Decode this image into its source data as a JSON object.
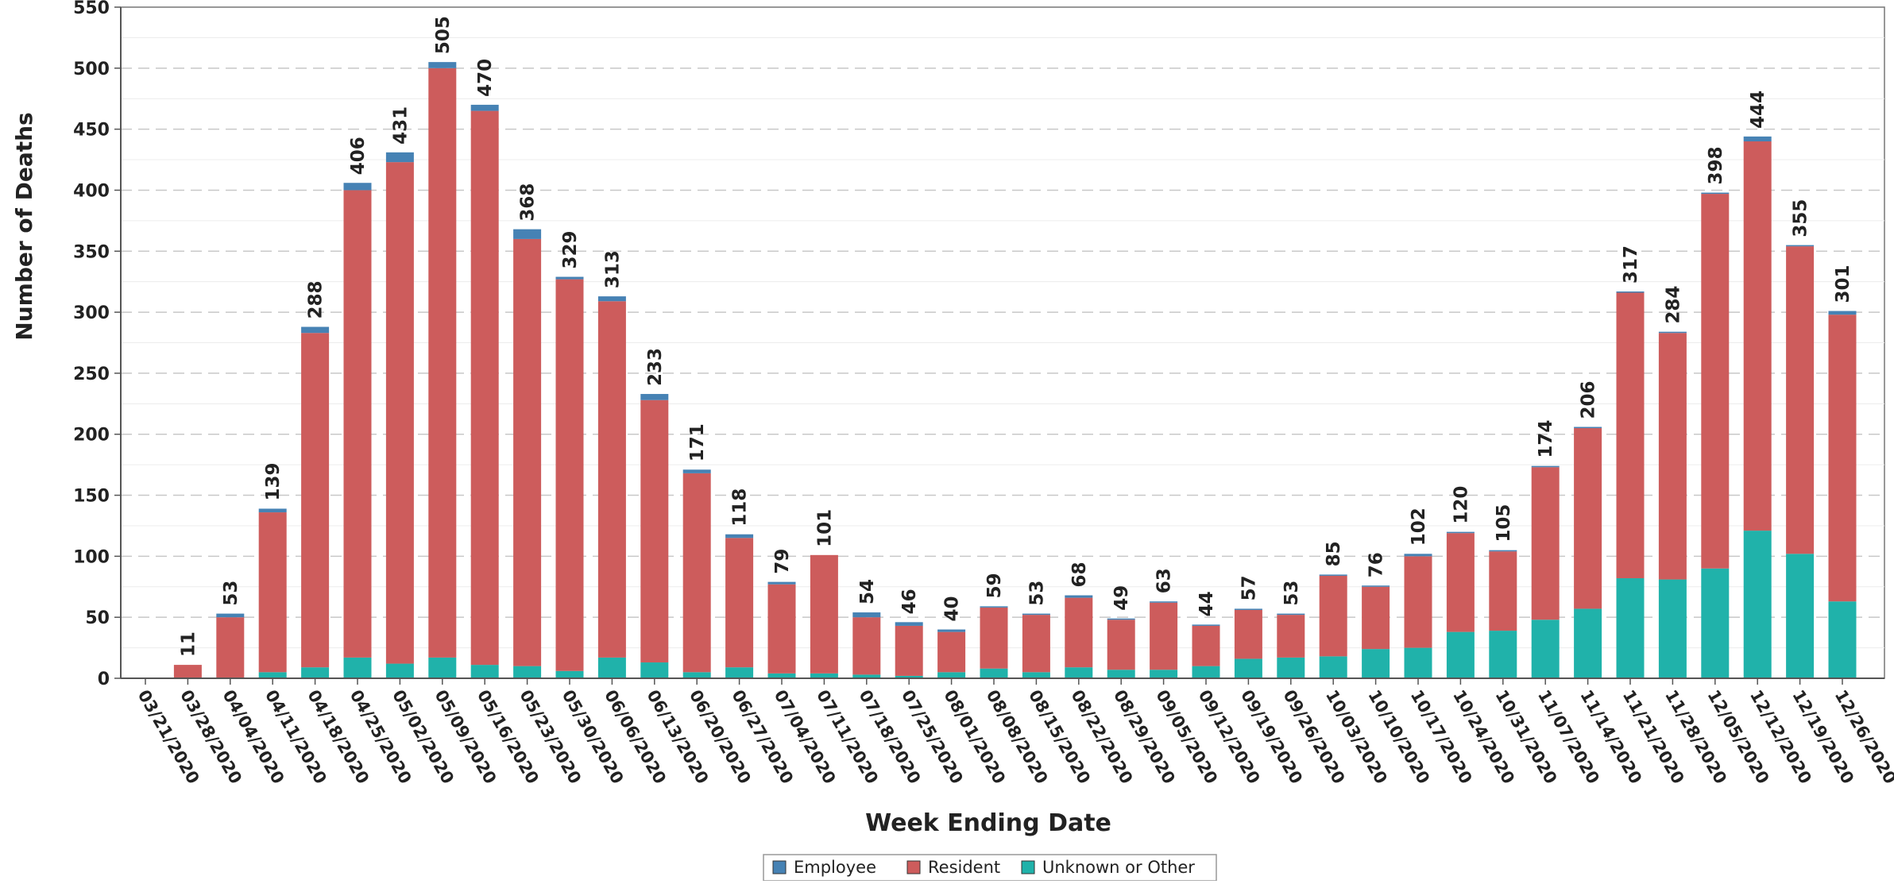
{
  "chart_data": {
    "type": "bar",
    "stacked": true,
    "xlabel": "Week Ending Date",
    "ylabel": "Number of Deaths",
    "ylim": [
      0,
      550
    ],
    "ytick_step": 50,
    "grid": true,
    "legend_position": "bottom-center",
    "categories": [
      "03/21/2020",
      "03/28/2020",
      "04/04/2020",
      "04/11/2020",
      "04/18/2020",
      "04/25/2020",
      "05/02/2020",
      "05/09/2020",
      "05/16/2020",
      "05/23/2020",
      "05/30/2020",
      "06/06/2020",
      "06/13/2020",
      "06/20/2020",
      "06/27/2020",
      "07/04/2020",
      "07/11/2020",
      "07/18/2020",
      "07/25/2020",
      "08/01/2020",
      "08/08/2020",
      "08/15/2020",
      "08/22/2020",
      "08/29/2020",
      "09/05/2020",
      "09/12/2020",
      "09/19/2020",
      "09/26/2020",
      "10/03/2020",
      "10/10/2020",
      "10/17/2020",
      "10/24/2020",
      "10/31/2020",
      "11/07/2020",
      "11/14/2020",
      "11/21/2020",
      "11/28/2020",
      "12/05/2020",
      "12/12/2020",
      "12/19/2020",
      "12/26/2020"
    ],
    "totals": [
      0,
      11,
      53,
      139,
      288,
      406,
      431,
      505,
      470,
      368,
      329,
      313,
      233,
      171,
      118,
      79,
      101,
      54,
      46,
      40,
      59,
      53,
      68,
      49,
      63,
      44,
      57,
      53,
      85,
      76,
      102,
      120,
      105,
      174,
      206,
      317,
      284,
      398,
      444,
      355,
      301
    ],
    "series": [
      {
        "name": "Unknown or Other",
        "color": "#20b2aa",
        "values": [
          0,
          0,
          0,
          5,
          9,
          17,
          12,
          17,
          11,
          10,
          6,
          17,
          13,
          5,
          9,
          4,
          4,
          3,
          2,
          5,
          8,
          5,
          9,
          7,
          7,
          10,
          16,
          17,
          18,
          24,
          25,
          38,
          39,
          48,
          57,
          82,
          81,
          90,
          121,
          102,
          63
        ]
      },
      {
        "name": "Resident",
        "color": "#cd5c5c",
        "values": [
          0,
          11,
          50,
          131,
          274,
          383,
          411,
          483,
          454,
          350,
          321,
          292,
          215,
          163,
          106,
          73,
          97,
          47,
          41,
          33,
          50,
          47,
          57,
          41,
          55,
          33,
          40,
          35,
          66,
          51,
          75,
          81,
          65,
          125,
          148,
          234,
          202,
          307,
          319,
          252,
          235
        ]
      },
      {
        "name": "Employee",
        "color": "#4682b4",
        "values": [
          0,
          0,
          3,
          3,
          5,
          6,
          8,
          5,
          5,
          8,
          2,
          4,
          5,
          3,
          3,
          2,
          0,
          4,
          3,
          2,
          1,
          1,
          2,
          1,
          1,
          1,
          1,
          1,
          1,
          1,
          2,
          1,
          1,
          1,
          1,
          1,
          1,
          1,
          4,
          1,
          3
        ]
      }
    ]
  },
  "legend": {
    "items": [
      {
        "label": "Employee",
        "color": "#4682b4"
      },
      {
        "label": "Resident",
        "color": "#cd5c5c"
      },
      {
        "label": "Unknown or Other",
        "color": "#20b2aa"
      }
    ]
  }
}
